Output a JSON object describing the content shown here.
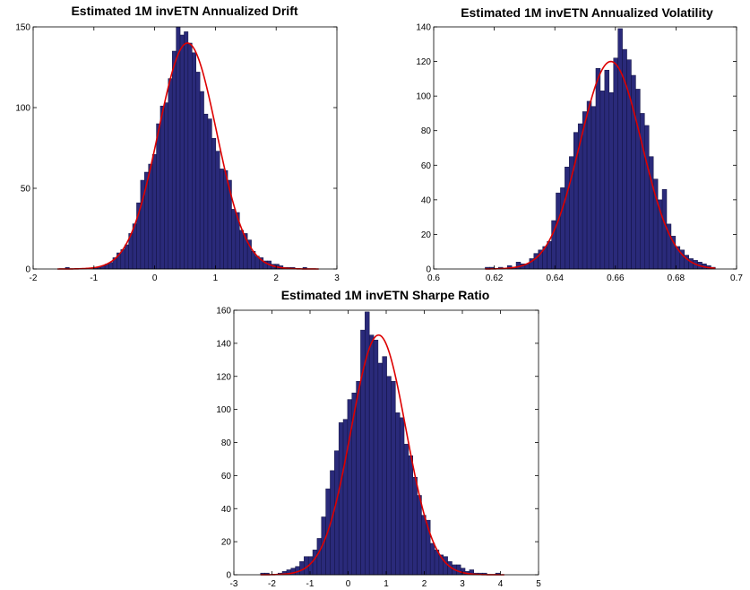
{
  "chart_data": [
    {
      "type": "bar",
      "title": "Estimated 1M invETN Annualized Drift",
      "xlabel": "",
      "ylabel": "",
      "xlim": [
        -2,
        3
      ],
      "ylim": [
        0,
        150
      ],
      "xticks": [
        -2,
        -1,
        0,
        1,
        2,
        3
      ],
      "yticks": [
        0,
        50,
        100,
        150
      ],
      "bin_edges_range": [
        -1.6,
        2.7
      ],
      "counts": [
        0,
        0,
        1,
        0,
        0,
        0,
        0,
        0,
        0,
        1,
        1,
        2,
        3,
        4,
        7,
        10,
        12,
        15,
        22,
        28,
        41,
        55,
        60,
        65,
        71,
        90,
        101,
        103,
        118,
        135,
        151,
        145,
        147,
        140,
        134,
        122,
        110,
        96,
        93,
        81,
        73,
        62,
        61,
        55,
        37,
        35,
        24,
        22,
        18,
        11,
        8,
        7,
        5,
        5,
        3,
        3,
        2,
        1,
        1,
        1,
        0,
        0,
        1,
        0,
        0,
        0
      ],
      "fit_curve": {
        "type": "normal",
        "mean": 0.54,
        "sd": 0.48,
        "peak": 140
      },
      "bar_color": "#2a2a7a",
      "curve_color": "#dd0000"
    },
    {
      "type": "bar",
      "title": "Estimated 1M invETN Annualized Volatility",
      "xlabel": "",
      "ylabel": "",
      "xlim": [
        0.6,
        0.7
      ],
      "ylim": [
        0,
        140
      ],
      "xticks": [
        0.6,
        0.62,
        0.64,
        0.66,
        0.68,
        0.7
      ],
      "yticks": [
        0,
        20,
        40,
        60,
        80,
        100,
        120,
        140
      ],
      "bin_edges_range": [
        0.617,
        0.693
      ],
      "counts": [
        1,
        1,
        0,
        1,
        0,
        2,
        1,
        4,
        3,
        3,
        6,
        9,
        11,
        13,
        16,
        28,
        44,
        47,
        59,
        65,
        79,
        84,
        91,
        97,
        94,
        116,
        103,
        115,
        102,
        122,
        139,
        127,
        121,
        112,
        104,
        90,
        83,
        65,
        52,
        40,
        46,
        26,
        19,
        13,
        11,
        8,
        6,
        5,
        4,
        3,
        2,
        1
      ],
      "fit_curve": {
        "type": "normal",
        "mean": 0.6585,
        "sd": 0.0102,
        "peak": 120
      },
      "bar_color": "#2a2a7a",
      "curve_color": "#dd0000"
    },
    {
      "type": "bar",
      "title": "Estimated 1M invETN Sharpe Ratio",
      "xlabel": "",
      "ylabel": "",
      "xlim": [
        -3,
        5
      ],
      "ylim": [
        0,
        160
      ],
      "xticks": [
        -3,
        -2,
        -1,
        0,
        1,
        2,
        3,
        4,
        5
      ],
      "yticks": [
        0,
        20,
        40,
        60,
        80,
        100,
        120,
        140,
        160
      ],
      "bin_edges_range": [
        -2.3,
        4.1
      ],
      "counts": [
        1,
        1,
        0,
        0,
        1,
        2,
        3,
        4,
        5,
        8,
        11,
        11,
        15,
        22,
        35,
        52,
        63,
        75,
        92,
        94,
        106,
        110,
        117,
        148,
        159,
        145,
        142,
        128,
        132,
        120,
        117,
        98,
        95,
        79,
        72,
        59,
        48,
        36,
        33,
        19,
        15,
        12,
        11,
        8,
        6,
        6,
        4,
        2,
        3,
        1,
        1,
        1,
        0,
        0,
        1,
        0
      ],
      "fit_curve": {
        "type": "normal",
        "mean": 0.8,
        "sd": 0.72,
        "peak": 145
      },
      "bar_color": "#2a2a7a",
      "curve_color": "#dd0000"
    }
  ]
}
